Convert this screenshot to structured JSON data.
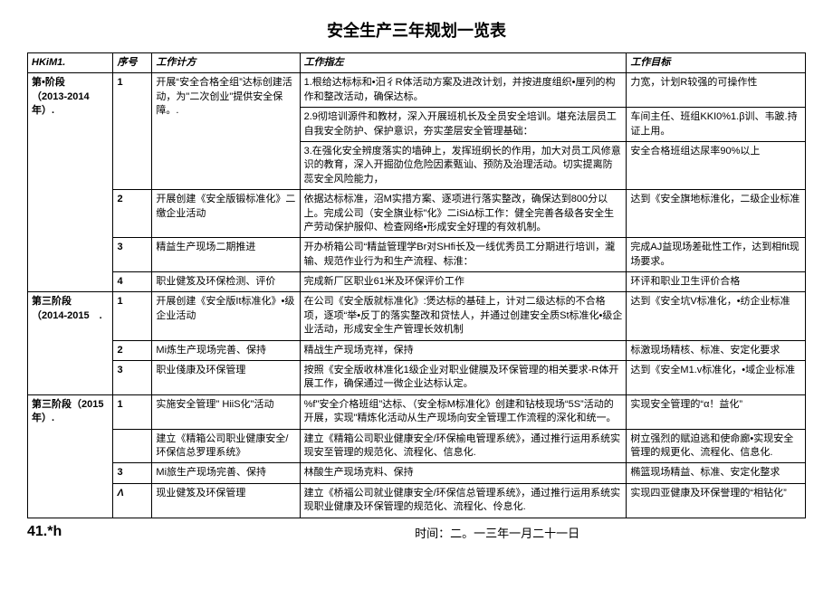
{
  "title": "安全生产三年规划一览表",
  "header": {
    "c0": "HKiM1.",
    "c1": "序号",
    "c2": "工作计方",
    "c3": "工作指左",
    "c4": "工作目标"
  },
  "rows": [
    {
      "phase": "第•阶段\n（2013-2014年）.",
      "phase_rowspan": 6,
      "seq": "1",
      "seq_rowspan": 3,
      "plan": "开展“安全合格全组”达标创建活动，为\"二次创业\"提供安全保障。.",
      "plan_rowspan": 3,
      "guide": "1.根给达标标和•汨彳R体活动方案及进改计划，并按进度组织•厘列的构作和整改活动，确保达标。",
      "goal": "力宽，计划R较强的可操作性"
    },
    {
      "guide": "2.9彻培训源件和教材，深入开展班机长及全员安全培训。堪充法层员工自我安全防护、保护意识，夯实垄层安全管理基础：",
      "goal": "车间主任、班组KKI0%1.β训、韦跛.持证上用。"
    },
    {
      "guide": "3.在强化安全辨度落实的墙砷上，发挥班纲长的作用，加大对员工风修意识的教育，深入开掘劭位危险因素甄讪、预防及治理活动。切实提离防蕊安全风险能力，",
      "goal": "安全合格班组达尿率90%以上"
    },
    {
      "seq": "2",
      "plan": "开展创建《安全版锻标准化》二缴企业活动",
      "guide": "依据达标标准，沼M实措方案、逐项进行落实整改，确保达到800分以上。完成公司（安全旗业标\"化》二iSiΔ标工作：健全完善各级各安全生产劳动保护服仰、检查网络•形成安全好理的有效机制。",
      "goal": "达到《安全旗地标淮化，二级企业标准"
    },
    {
      "seq": "3",
      "plan": "精益生产现场二期推进",
      "guide": "开办桥箱公司“精益管理学Br对SHfi长及一线优秀员工分期进行培训，瀧输、规范作业行为和生产流程、标淮：",
      "goal": "完成AJ益现场差砒性工作，达到相fit现场要求。"
    },
    {
      "seq": "4",
      "plan": "职业健笈及环保检测、评价",
      "guide": "完成新厂区职业61米及环保评价工作",
      "goal": "环评和职业卫生评价合格"
    },
    {
      "phase": "第三阶段\n（2014-2015　.",
      "phase_rowspan": 3,
      "seq": "1",
      "plan": "开展创建《安全版It标准化》•级企业活动",
      "guide": "在公司《安全版就标准化》:煲达标的基硅上，计对二级达标的不合格项，逐项“举•反丁的落实整改和贷怯人，并通过创建安全质St标准化•级企业活动，形成安全生产管理长效机制",
      "goal": "达到《安全坑V标准化，•纺企业标准"
    },
    {
      "seq": "2",
      "plan": "Mi炼生产现场完善、保持",
      "guide": "精战生产现场克祥，保持",
      "goal": "标激现场精核、标准、安定化要求"
    },
    {
      "seq": "3",
      "plan": "职业俴康及环保管理",
      "guide": "按照《安全版收林准化1级企业对职业健膜及环保管理的相关要求-R体开展工作，确保通过一微企业达标认定。",
      "goal": "达到《安全M1.v标准化，•域企业标准"
    },
    {
      "phase": "第三阶段（2015年）.",
      "phase_rowspan": 4,
      "seq": "1",
      "plan": "实施安全管理\" HiiS化\"活动",
      "guide": "%f\"安全介格班组\"达标、（安全标M标准化》创建和钻枝现场“5S”活动的开展，实现\"精炼化活动从生产现场向安全管理工作流程的深化和统一。",
      "goal": "实现安全管理的“α！益化”"
    },
    {
      "seq": "",
      "plan": "建立《精箱公司职业健康安全/环保信总罗理系统》",
      "guide": "建立《精箱公司职业健康安全/环保榆电管理系统》，通过推行运用系统实现安至管理的规范化、流程化、信息化.",
      "goal": "树立强烈的赋迫逃和使命廊•实现安全管理的规更化、流程化、信息化."
    },
    {
      "seq": "3",
      "plan": "Mi旅生产现场完善、保持",
      "guide": "林酸生产现场克料、保持",
      "goal": "椭篮现场精益、标准、安定化整求"
    },
    {
      "seq": "Λ",
      "seq_italic": true,
      "plan": "现业健笈及环保管理",
      "guide": "建立《桥福公司就业健康安全/环保信总管理系统》，通过推行运用系统实现职业健康及环保管理的规范化、流程化、伶息化.",
      "goal": "实现四亚健康及环保誉理的“相钻化”"
    }
  ],
  "footer": {
    "left": "41.*h",
    "right": "时间：二。一三年一月二十一日"
  }
}
